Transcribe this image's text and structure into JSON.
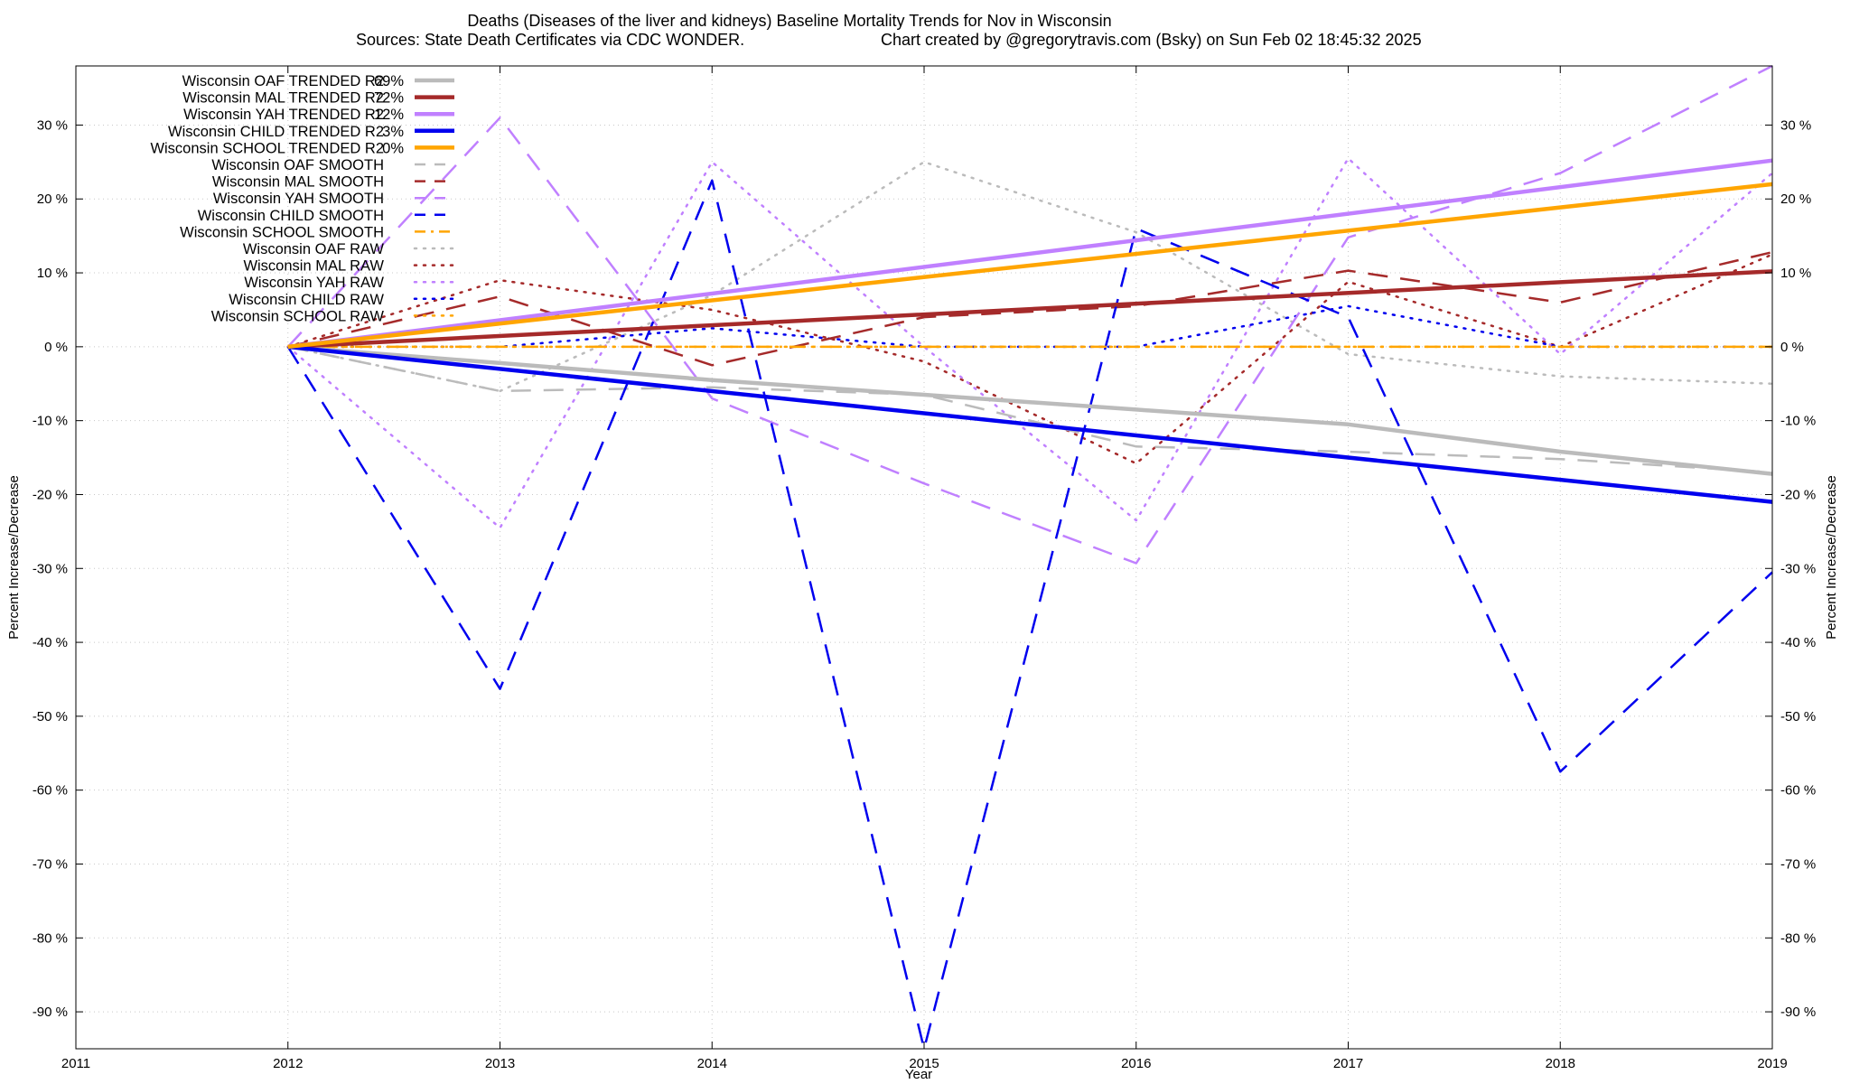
{
  "chart_data": {
    "type": "line",
    "title": "Deaths (Diseases of the liver and kidneys)  Baseline Mortality Trends for Nov in Wisconsin",
    "subtitle_left": "Sources: State Death Certificates via CDC WONDER.",
    "subtitle_right": "Chart created by @gregorytravis.com (Bsky) on Sun Feb 02 18:45:32 2025",
    "xlabel": "Year",
    "ylabel": "Percent Increase/Decrease",
    "y2label": "Percent Increase/Decrease",
    "xlim": [
      2011,
      2019
    ],
    "ylim": [
      -95,
      38
    ],
    "x_ticks": [
      2011,
      2012,
      2013,
      2014,
      2015,
      2016,
      2017,
      2018,
      2019
    ],
    "y_ticks": [
      30,
      20,
      10,
      0,
      -10,
      -20,
      -30,
      -40,
      -50,
      -60,
      -70,
      -80,
      -90
    ],
    "y_tick_labels": [
      "30 %",
      "20 %",
      "10 %",
      "0 %",
      "-10 %",
      "-20 %",
      "-30 %",
      "-40 %",
      "-50 %",
      "-60 %",
      "-70 %",
      "-80 %",
      "-90 %"
    ],
    "y2_tick_labels": [
      "30 %",
      "20 %",
      "10 %",
      "0 %",
      "-10 %",
      "-20 %",
      "-30 %",
      "-40 %",
      "-50 %",
      "-60 %",
      "-70 %",
      "-80 %",
      "-90 %"
    ],
    "grid": true,
    "legend_position": "top-left",
    "series": [
      {
        "name": "Wisconsin OAF TRENDED R2",
        "r2": "69%",
        "style": "trend",
        "color": "#bbbbbb",
        "x": [
          2012,
          2013,
          2014,
          2015,
          2016,
          2017,
          2018,
          2019
        ],
        "y": [
          0,
          -2.2,
          -4.5,
          -6.5,
          -8.5,
          -10.5,
          -14.2,
          -17.2
        ]
      },
      {
        "name": "Wisconsin MAL TRENDED R2",
        "r2": "72%",
        "style": "trend",
        "color": "#a52a2a",
        "x": [
          2012,
          2019
        ],
        "y": [
          0,
          10.2
        ]
      },
      {
        "name": "Wisconsin YAH TRENDED R2",
        "r2": "12%",
        "style": "trend",
        "color": "#c080ff",
        "x": [
          2012,
          2019
        ],
        "y": [
          0,
          25.2
        ]
      },
      {
        "name": "Wisconsin CHILD TRENDED R2",
        "r2": "3%",
        "style": "trend",
        "color": "#0000ee",
        "x": [
          2012,
          2019
        ],
        "y": [
          0,
          -21
        ]
      },
      {
        "name": "Wisconsin SCHOOL TRENDED R2",
        "r2": "0%",
        "style": "trend",
        "color": "#ffa500",
        "x": [
          2012,
          2019
        ],
        "y": [
          0,
          22
        ]
      },
      {
        "name": "Wisconsin OAF SMOOTH",
        "r2": "",
        "style": "smooth",
        "color": "#bbbbbb",
        "x": [
          2012,
          2013,
          2014,
          2015,
          2016,
          2017,
          2018,
          2019
        ],
        "y": [
          0,
          -6,
          -5.5,
          -6.5,
          -13.5,
          -14.2,
          -15.2,
          -17
        ]
      },
      {
        "name": "Wisconsin MAL SMOOTH",
        "r2": "",
        "style": "smooth",
        "color": "#a52a2a",
        "x": [
          2012,
          2013,
          2014,
          2015,
          2016,
          2017,
          2018,
          2019
        ],
        "y": [
          0,
          6.8,
          -2.5,
          4,
          5.5,
          10.3,
          6,
          12.8
        ]
      },
      {
        "name": "Wisconsin YAH SMOOTH",
        "r2": "",
        "style": "smooth",
        "color": "#c080ff",
        "x": [
          2012,
          2013,
          2014,
          2015,
          2016,
          2017,
          2018,
          2019
        ],
        "y": [
          0,
          31,
          -7,
          -18.5,
          -29.3,
          14.8,
          23.5,
          38
        ]
      },
      {
        "name": "Wisconsin CHILD SMOOTH",
        "r2": "",
        "style": "smooth",
        "color": "#0000ee",
        "x": [
          2012,
          2013,
          2014,
          2015,
          2016,
          2017,
          2018,
          2019
        ],
        "y": [
          0,
          -46.3,
          22.5,
          -95,
          16,
          4,
          -57.5,
          -30.5
        ]
      },
      {
        "name": "Wisconsin SCHOOL SMOOTH",
        "r2": "",
        "style": "smooth",
        "color": "#ffa500",
        "x": [
          2012,
          2019
        ],
        "y": [
          0,
          0
        ]
      },
      {
        "name": "Wisconsin OAF RAW",
        "r2": "",
        "style": "raw",
        "color": "#bbbbbb",
        "x": [
          2012,
          2013,
          2014,
          2015,
          2016,
          2017,
          2018,
          2019
        ],
        "y": [
          0,
          -6,
          7,
          25,
          15.5,
          -1,
          -4,
          -5
        ]
      },
      {
        "name": "Wisconsin MAL RAW",
        "r2": "",
        "style": "raw",
        "color": "#a52a2a",
        "x": [
          2012,
          2013,
          2014,
          2015,
          2016,
          2017,
          2018,
          2019
        ],
        "y": [
          0,
          9,
          5,
          -2,
          -15.8,
          8.8,
          0,
          12.5
        ]
      },
      {
        "name": "Wisconsin YAH RAW",
        "r2": "",
        "style": "raw",
        "color": "#c080ff",
        "x": [
          2012,
          2013,
          2014,
          2015,
          2016,
          2017,
          2018,
          2019
        ],
        "y": [
          0,
          -24.5,
          25,
          0,
          -23.5,
          25.5,
          -1,
          23.5
        ]
      },
      {
        "name": "Wisconsin CHILD RAW",
        "r2": "",
        "style": "raw",
        "color": "#0000ee",
        "x": [
          2012,
          2013,
          2014,
          2015,
          2016,
          2017,
          2018,
          2019
        ],
        "y": [
          0,
          0,
          2.5,
          0,
          0,
          5.5,
          0,
          0
        ]
      },
      {
        "name": "Wisconsin SCHOOL RAW",
        "r2": "",
        "style": "raw",
        "color": "#ffa500",
        "x": [
          2012,
          2019
        ],
        "y": [
          0,
          0
        ]
      }
    ]
  }
}
